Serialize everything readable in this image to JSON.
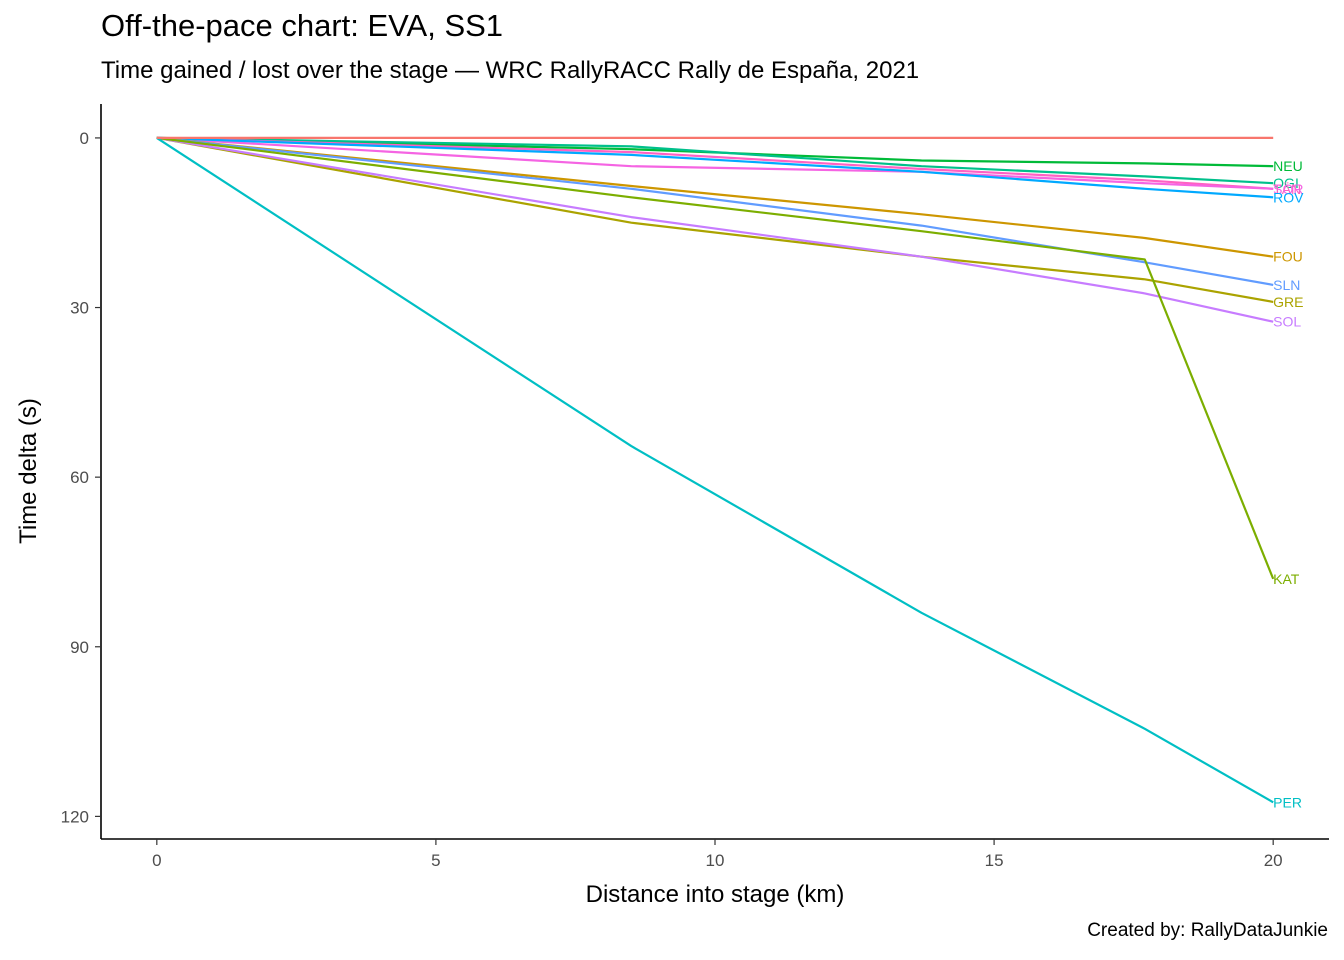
{
  "chart_data": {
    "type": "line",
    "title": "Off-the-pace chart: EVA, SS1",
    "subtitle": "Time gained / lost over the stage — WRC RallyRACC Rally de España, 2021",
    "caption": "Created by: RallyDataJunkie",
    "xlabel": "Distance into stage (km)",
    "ylabel": "Time delta (s)",
    "xlim": [
      -1,
      21
    ],
    "ylim": [
      -6,
      124
    ],
    "y_reversed": true,
    "x_ticks": [
      0,
      5,
      10,
      15,
      20
    ],
    "y_ticks": [
      0,
      30,
      60,
      90,
      120
    ],
    "grid": false,
    "legend": "direct labels at line ends",
    "series": [
      {
        "name": "NEU",
        "color": "#00BA38",
        "x": [
          0,
          8.5,
          13.7,
          17.7,
          20.0
        ],
        "y": [
          0,
          2.0,
          4.0,
          4.5,
          5.0
        ]
      },
      {
        "name": "OGI",
        "color": "#00C08B",
        "x": [
          0,
          8.5,
          13.7,
          17.7,
          20.0
        ],
        "y": [
          0,
          1.5,
          5.0,
          6.8,
          8.0
        ]
      },
      {
        "name": "TÄN",
        "color": "#FF61C3",
        "x": [
          0,
          8.5,
          13.7,
          17.7,
          20.0
        ],
        "y": [
          0,
          2.5,
          5.5,
          7.5,
          9.0
        ]
      },
      {
        "name": "SOR",
        "color": "#F564E3",
        "x": [
          0,
          8.5,
          13.7,
          17.7,
          20.0
        ],
        "y": [
          0,
          5.0,
          6.0,
          8.0,
          9.0
        ]
      },
      {
        "name": "ROV",
        "color": "#00A9FF",
        "x": [
          0,
          8.5,
          13.7,
          17.7,
          20.0
        ],
        "y": [
          0,
          3.0,
          6.0,
          9.0,
          10.5
        ]
      },
      {
        "name": "FOU",
        "color": "#CD9600",
        "x": [
          0,
          8.5,
          13.7,
          17.7,
          20.0
        ],
        "y": [
          0,
          8.5,
          13.5,
          17.7,
          21.0
        ]
      },
      {
        "name": "SLN",
        "color": "#619CFF",
        "x": [
          0,
          8.5,
          13.7,
          17.7,
          20.0
        ],
        "y": [
          0,
          9.0,
          15.5,
          22.0,
          26.0
        ]
      },
      {
        "name": "GRE",
        "color": "#ABA300",
        "x": [
          0,
          8.5,
          13.7,
          17.7,
          20.0
        ],
        "y": [
          0,
          15.0,
          21.0,
          25.0,
          29.0
        ]
      },
      {
        "name": "SOL",
        "color": "#C77CFF",
        "x": [
          0,
          8.5,
          13.7,
          17.7,
          20.0
        ],
        "y": [
          0,
          14.0,
          21.0,
          27.5,
          32.5
        ]
      },
      {
        "name": "KAT",
        "color": "#7CAE00",
        "x": [
          0,
          8.5,
          13.7,
          17.7,
          20.0
        ],
        "y": [
          0,
          10.5,
          16.5,
          21.5,
          78.0
        ]
      },
      {
        "name": "PER",
        "color": "#00BFC4",
        "x": [
          0,
          8.5,
          13.7,
          17.7,
          20.0
        ],
        "y": [
          0,
          54.5,
          84.0,
          104.5,
          117.5
        ]
      },
      {
        "name": "EVA",
        "color": "#F8766D",
        "x": [
          0,
          8.5,
          13.7,
          17.7,
          20.0
        ],
        "y": [
          0,
          0,
          0,
          0,
          0
        ],
        "label": false
      }
    ]
  }
}
